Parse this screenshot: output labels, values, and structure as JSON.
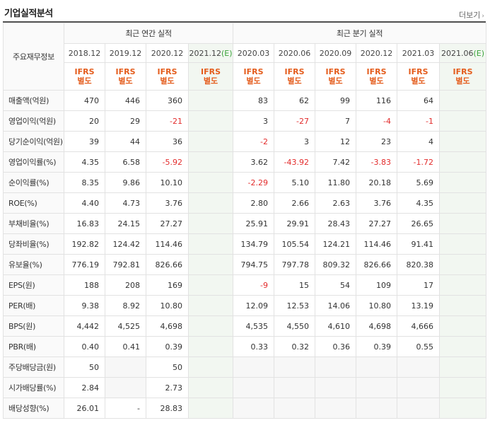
{
  "section_title": "기업실적분석",
  "more_link": "더보기",
  "corner_label": "주요재무정보",
  "group_annual": "최근 연간 실적",
  "group_quarterly": "최근 분기 실적",
  "ifrs_top": "IFRS",
  "ifrs_bottom": "별도",
  "annual_periods": [
    "2018.12",
    "2019.12",
    "2020.12",
    "2021.12"
  ],
  "annual_estimate_suffix": "(E)",
  "quarterly_periods": [
    "2020.03",
    "2020.06",
    "2020.09",
    "2020.12",
    "2021.03",
    "2021.06"
  ],
  "quarterly_estimate_suffix": "(E)",
  "rows": [
    {
      "label": "매출액(억원)",
      "annual": [
        "470",
        "446",
        "360",
        ""
      ],
      "quarterly": [
        "83",
        "62",
        "99",
        "116",
        "64",
        ""
      ]
    },
    {
      "label": "영업이익(억원)",
      "annual": [
        "20",
        "29",
        "-21",
        ""
      ],
      "quarterly": [
        "3",
        "-27",
        "7",
        "-4",
        "-1",
        ""
      ]
    },
    {
      "label": "당기순이익(억원)",
      "annual": [
        "39",
        "44",
        "36",
        ""
      ],
      "quarterly": [
        "-2",
        "3",
        "12",
        "23",
        "4",
        ""
      ]
    },
    {
      "label": "영업이익률(%)",
      "annual": [
        "4.35",
        "6.58",
        "-5.92",
        ""
      ],
      "quarterly": [
        "3.62",
        "-43.92",
        "7.42",
        "-3.83",
        "-1.72",
        ""
      ]
    },
    {
      "label": "순이익률(%)",
      "annual": [
        "8.35",
        "9.86",
        "10.10",
        ""
      ],
      "quarterly": [
        "-2.29",
        "5.10",
        "11.80",
        "20.18",
        "5.69",
        ""
      ]
    },
    {
      "label": "ROE(%)",
      "annual": [
        "4.40",
        "4.73",
        "3.76",
        ""
      ],
      "quarterly": [
        "2.80",
        "2.66",
        "2.63",
        "3.76",
        "4.35",
        ""
      ]
    },
    {
      "label": "부채비율(%)",
      "annual": [
        "16.83",
        "24.15",
        "27.27",
        ""
      ],
      "quarterly": [
        "25.91",
        "29.91",
        "28.43",
        "27.27",
        "26.65",
        ""
      ]
    },
    {
      "label": "당좌비율(%)",
      "annual": [
        "192.82",
        "124.42",
        "114.46",
        ""
      ],
      "quarterly": [
        "134.79",
        "105.54",
        "124.21",
        "114.46",
        "91.41",
        ""
      ]
    },
    {
      "label": "유보율(%)",
      "annual": [
        "776.19",
        "792.81",
        "826.66",
        ""
      ],
      "quarterly": [
        "794.75",
        "797.78",
        "809.32",
        "826.66",
        "820.38",
        ""
      ]
    },
    {
      "label": "EPS(원)",
      "annual": [
        "188",
        "208",
        "169",
        ""
      ],
      "quarterly": [
        "-9",
        "15",
        "54",
        "109",
        "17",
        ""
      ]
    },
    {
      "label": "PER(배)",
      "annual": [
        "9.38",
        "8.92",
        "10.80",
        ""
      ],
      "quarterly": [
        "12.09",
        "12.53",
        "14.06",
        "10.80",
        "13.19",
        ""
      ]
    },
    {
      "label": "BPS(원)",
      "annual": [
        "4,442",
        "4,525",
        "4,698",
        ""
      ],
      "quarterly": [
        "4,535",
        "4,550",
        "4,610",
        "4,698",
        "4,666",
        ""
      ]
    },
    {
      "label": "PBR(배)",
      "annual": [
        "0.40",
        "0.41",
        "0.39",
        ""
      ],
      "quarterly": [
        "0.33",
        "0.32",
        "0.36",
        "0.39",
        "0.55",
        ""
      ]
    },
    {
      "label": "주당배당금(원)",
      "annual": [
        "50",
        "",
        "50",
        ""
      ],
      "quarterly": [
        "",
        "",
        "",
        "",
        "",
        ""
      ]
    },
    {
      "label": "시가배당률(%)",
      "annual": [
        "2.84",
        "",
        "2.73",
        ""
      ],
      "quarterly": [
        "",
        "",
        "",
        "",
        "",
        ""
      ]
    },
    {
      "label": "배당성향(%)",
      "annual": [
        "26.01",
        "-",
        "28.83",
        ""
      ],
      "quarterly": [
        "",
        "",
        "",
        "",
        "",
        ""
      ]
    }
  ],
  "colors": {
    "negative": "#e32c2c",
    "ifrs": "#e45c1c",
    "estimate_bg": "#f2f7f1",
    "estimate_mark": "#3aa33a"
  }
}
